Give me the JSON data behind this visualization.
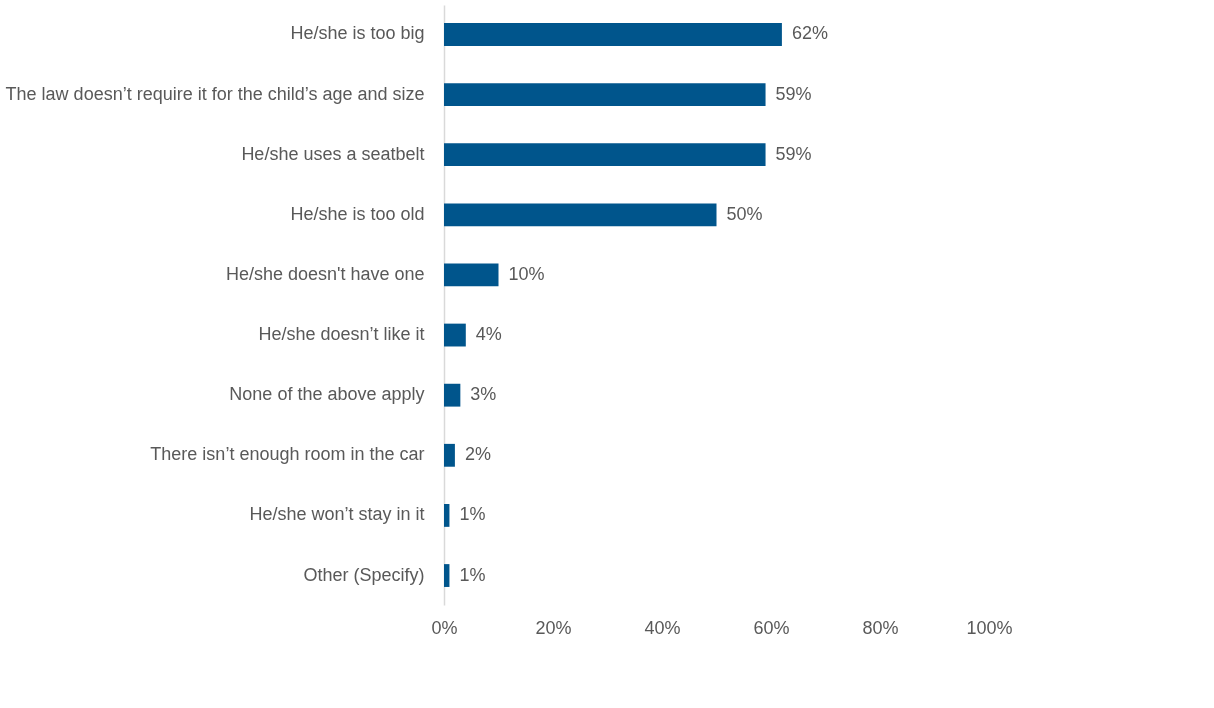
{
  "chart_data": {
    "type": "bar",
    "orientation": "horizontal",
    "categories": [
      "He/she is too big",
      "The law doesn’t require it for the child’s age and size",
      "He/she uses a seatbelt",
      "He/she is too old",
      "He/she doesn't have one",
      "He/she doesn’t like it",
      "None of the above apply",
      "There isn’t enough room in the car",
      "He/she won’t stay in it",
      "Other (Specify)"
    ],
    "values": [
      62,
      59,
      59,
      50,
      10,
      4,
      3,
      2,
      1,
      1
    ],
    "value_labels": [
      "62%",
      "59%",
      "59%",
      "50%",
      "10%",
      "4%",
      "3%",
      "2%",
      "1%",
      "1%"
    ],
    "color": "#00558c",
    "xlim": [
      0,
      100
    ],
    "xticks": [
      {
        "value": 0,
        "label": "0%"
      },
      {
        "value": 20,
        "label": "20%"
      },
      {
        "value": 40,
        "label": "40%"
      },
      {
        "value": 60,
        "label": "60%"
      },
      {
        "value": 80,
        "label": "80%"
      },
      {
        "value": 100,
        "label": "100%"
      }
    ],
    "grid": false
  }
}
